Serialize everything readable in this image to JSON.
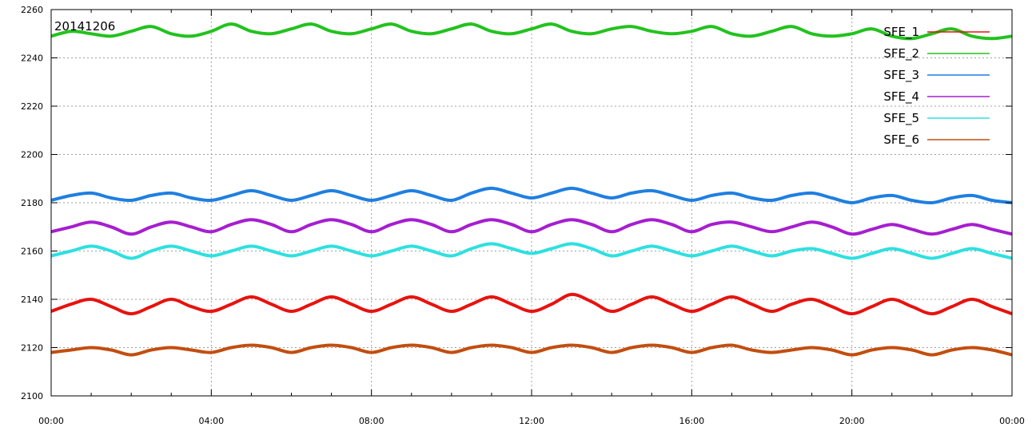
{
  "chart_data": {
    "type": "line",
    "title": "",
    "xlabel": "",
    "ylabel": "",
    "annotation": "20141206",
    "x_tick_labels": [
      "00:00",
      "04:00",
      "08:00",
      "12:00",
      "16:00",
      "20:00",
      "00:00"
    ],
    "y_tick_labels": [
      "2100",
      "2120",
      "2140",
      "2160",
      "2180",
      "2200",
      "2220",
      "2240",
      "2260"
    ],
    "xlim_hours": [
      0,
      24
    ],
    "ylim": [
      2100,
      2260
    ],
    "grid": true,
    "legend_position": "top-right",
    "x_hours": [
      0,
      0.5,
      1,
      1.5,
      2,
      2.5,
      3,
      3.5,
      4,
      4.5,
      5,
      5.5,
      6,
      6.5,
      7,
      7.5,
      8,
      8.5,
      9,
      9.5,
      10,
      10.5,
      11,
      11.5,
      12,
      12.5,
      13,
      13.5,
      14,
      14.5,
      15,
      15.5,
      16,
      16.5,
      17,
      17.5,
      18,
      18.5,
      19,
      19.5,
      20,
      20.5,
      21,
      21.5,
      22,
      22.5,
      23,
      23.5,
      24
    ],
    "series": [
      {
        "name": "SFE_1",
        "color": "#e8120e",
        "values": [
          2135,
          2138,
          2140,
          2137,
          2134,
          2137,
          2140,
          2137,
          2135,
          2138,
          2141,
          2138,
          2135,
          2138,
          2141,
          2138,
          2135,
          2138,
          2141,
          2138,
          2135,
          2138,
          2141,
          2138,
          2135,
          2138,
          2142,
          2139,
          2135,
          2138,
          2141,
          2138,
          2135,
          2138,
          2141,
          2138,
          2135,
          2138,
          2140,
          2137,
          2134,
          2137,
          2140,
          2137,
          2134,
          2137,
          2140,
          2137,
          2134
        ]
      },
      {
        "name": "SFE_2",
        "color": "#23c21e",
        "values": [
          2249,
          2251,
          2250,
          2249,
          2251,
          2253,
          2250,
          2249,
          2251,
          2254,
          2251,
          2250,
          2252,
          2254,
          2251,
          2250,
          2252,
          2254,
          2251,
          2250,
          2252,
          2254,
          2251,
          2250,
          2252,
          2254,
          2251,
          2250,
          2252,
          2253,
          2251,
          2250,
          2251,
          2253,
          2250,
          2249,
          2251,
          2253,
          2250,
          2249,
          2250,
          2252,
          2249,
          2248,
          2250,
          2252,
          2249,
          2248,
          2249
        ]
      },
      {
        "name": "SFE_3",
        "color": "#1f7fe0",
        "values": [
          2181,
          2183,
          2184,
          2182,
          2181,
          2183,
          2184,
          2182,
          2181,
          2183,
          2185,
          2183,
          2181,
          2183,
          2185,
          2183,
          2181,
          2183,
          2185,
          2183,
          2181,
          2184,
          2186,
          2184,
          2182,
          2184,
          2186,
          2184,
          2182,
          2184,
          2185,
          2183,
          2181,
          2183,
          2184,
          2182,
          2181,
          2183,
          2184,
          2182,
          2180,
          2182,
          2183,
          2181,
          2180,
          2182,
          2183,
          2181,
          2180
        ]
      },
      {
        "name": "SFE_4",
        "color": "#a61ed0",
        "values": [
          2168,
          2170,
          2172,
          2170,
          2167,
          2170,
          2172,
          2170,
          2168,
          2171,
          2173,
          2171,
          2168,
          2171,
          2173,
          2171,
          2168,
          2171,
          2173,
          2171,
          2168,
          2171,
          2173,
          2171,
          2168,
          2171,
          2173,
          2171,
          2168,
          2171,
          2173,
          2171,
          2168,
          2171,
          2172,
          2170,
          2168,
          2170,
          2172,
          2170,
          2167,
          2169,
          2171,
          2169,
          2167,
          2169,
          2171,
          2169,
          2167
        ]
      },
      {
        "name": "SFE_5",
        "color": "#2ee0e0",
        "values": [
          2158,
          2160,
          2162,
          2160,
          2157,
          2160,
          2162,
          2160,
          2158,
          2160,
          2162,
          2160,
          2158,
          2160,
          2162,
          2160,
          2158,
          2160,
          2162,
          2160,
          2158,
          2161,
          2163,
          2161,
          2159,
          2161,
          2163,
          2161,
          2158,
          2160,
          2162,
          2160,
          2158,
          2160,
          2162,
          2160,
          2158,
          2160,
          2161,
          2159,
          2157,
          2159,
          2161,
          2159,
          2157,
          2159,
          2161,
          2159,
          2157
        ]
      },
      {
        "name": "SFE_6",
        "color": "#c24e0e",
        "values": [
          2118,
          2119,
          2120,
          2119,
          2117,
          2119,
          2120,
          2119,
          2118,
          2120,
          2121,
          2120,
          2118,
          2120,
          2121,
          2120,
          2118,
          2120,
          2121,
          2120,
          2118,
          2120,
          2121,
          2120,
          2118,
          2120,
          2121,
          2120,
          2118,
          2120,
          2121,
          2120,
          2118,
          2120,
          2121,
          2119,
          2118,
          2119,
          2120,
          2119,
          2117,
          2119,
          2120,
          2119,
          2117,
          2119,
          2120,
          2119,
          2117
        ]
      }
    ]
  }
}
